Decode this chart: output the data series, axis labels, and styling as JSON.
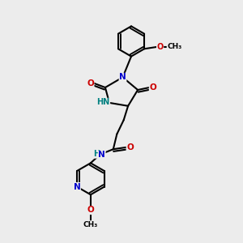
{
  "bg_color": "#ececec",
  "bond_color": "#000000",
  "N_color": "#0000cc",
  "O_color": "#cc0000",
  "H_color": "#008080",
  "C_color": "#000000",
  "line_width": 1.5,
  "figsize": [
    3.0,
    3.0
  ],
  "dpi": 100,
  "xlim": [
    0,
    10
  ],
  "ylim": [
    0,
    10
  ]
}
